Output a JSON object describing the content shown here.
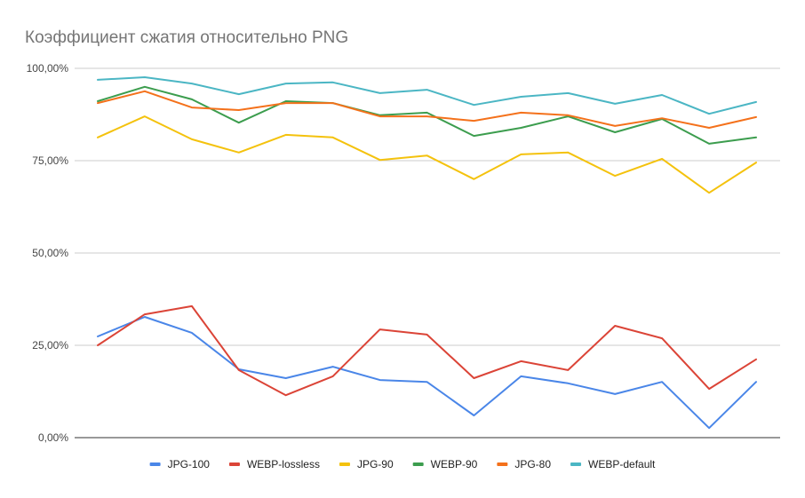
{
  "chart_data": {
    "type": "line",
    "title": "Коэффициент сжатия относительно PNG",
    "xlabel": "",
    "ylabel": "",
    "ylim": [
      0,
      100
    ],
    "yticks": [
      0,
      25,
      50,
      75,
      100
    ],
    "ytick_labels": [
      "0,00%",
      "25,00%",
      "50,00%",
      "75,00%",
      "100,00%"
    ],
    "grid": true,
    "legend_position": "bottom",
    "x": [
      1,
      2,
      3,
      4,
      5,
      6,
      7,
      8,
      9,
      10,
      11,
      12,
      13,
      14,
      15
    ],
    "series": [
      {
        "name": "JPG-100",
        "color": "#4a86e8",
        "values": [
          27.4,
          32.7,
          28.4,
          18.5,
          16.1,
          19.2,
          15.6,
          15.1,
          6.0,
          16.6,
          14.7,
          11.8,
          15.1,
          2.6,
          15.1
        ]
      },
      {
        "name": "WEBP-lossless",
        "color": "#db4437",
        "values": [
          25.0,
          33.4,
          35.6,
          18.3,
          11.5,
          16.6,
          29.3,
          27.9,
          16.1,
          20.7,
          18.3,
          30.3,
          26.9,
          13.2,
          21.2
        ]
      },
      {
        "name": "JPG-90",
        "color": "#f4c20d",
        "values": [
          81.3,
          87.0,
          80.8,
          77.2,
          82.0,
          81.3,
          75.2,
          76.4,
          70.0,
          76.7,
          77.2,
          70.9,
          75.5,
          66.3,
          74.5
        ]
      },
      {
        "name": "WEBP-90",
        "color": "#3c9d4e",
        "values": [
          91.1,
          95.0,
          91.6,
          85.3,
          91.1,
          90.6,
          87.3,
          88.0,
          81.7,
          83.9,
          87.0,
          82.7,
          86.3,
          79.6,
          81.3
        ]
      },
      {
        "name": "JPG-80",
        "color": "#f4711b",
        "values": [
          90.6,
          93.8,
          89.4,
          88.7,
          90.6,
          90.6,
          87.0,
          87.0,
          85.8,
          88.0,
          87.3,
          84.4,
          86.5,
          83.9,
          86.8
        ]
      },
      {
        "name": "WEBP-default",
        "color": "#4bb6c4",
        "values": [
          96.9,
          97.6,
          95.9,
          93.0,
          95.9,
          96.2,
          93.3,
          94.2,
          90.1,
          92.3,
          93.3,
          90.4,
          92.8,
          87.7,
          90.9
        ]
      }
    ]
  }
}
